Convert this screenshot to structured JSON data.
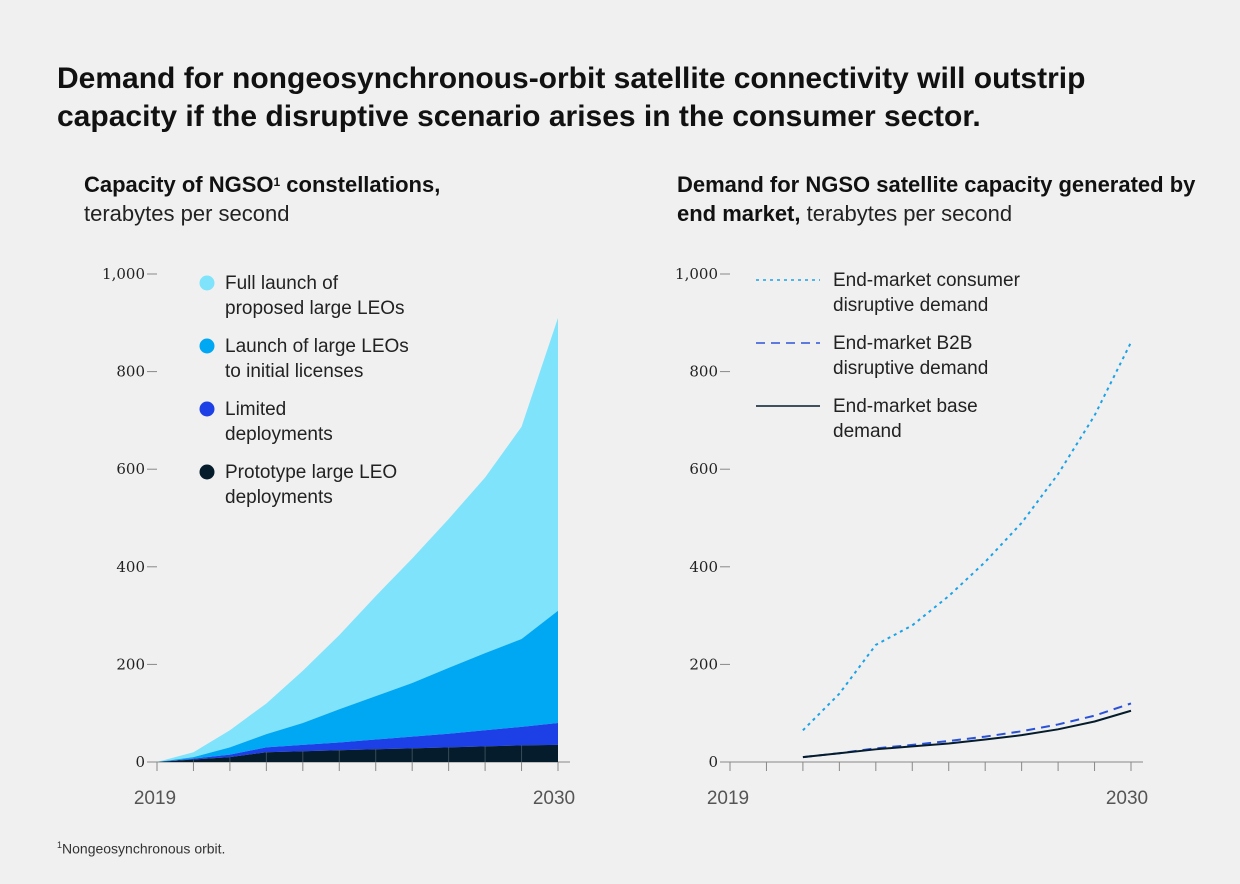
{
  "headline": "Demand for nongeosynchronous-orbit satellite connectivity will outstrip capacity if the disruptive scenario arises in the consumer sector.",
  "footnote": {
    "marker": "1",
    "text": "Nongeosynchronous orbit."
  },
  "colors": {
    "full_launch": "#7fe3fb",
    "initial_licenses": "#00a8f3",
    "limited": "#1d3fe6",
    "prototype": "#051c2c",
    "consumer_line": "#1aa3e8",
    "b2b_line": "#2a52d9",
    "base_line": "#051c2c",
    "axis": "#888888"
  },
  "chart_data": [
    {
      "type": "area",
      "stacked": true,
      "title_bold": "Capacity of NGSO",
      "title_sup": "1",
      "title_bold_tail": " constellations,",
      "title_unit": "terabytes per second",
      "x": [
        2019,
        2020,
        2021,
        2022,
        2023,
        2024,
        2025,
        2026,
        2027,
        2028,
        2029,
        2030
      ],
      "xtick_labels": [
        "2019",
        "2030"
      ],
      "yticks": [
        "1,000",
        "800",
        "600",
        "400",
        "200",
        "0"
      ],
      "ylim": [
        0,
        1000
      ],
      "series": [
        {
          "name": "Prototype large LEO deployments",
          "legend_lines": [
            "Prototype large LEO",
            "deployments"
          ],
          "color_key": "prototype",
          "values": [
            0,
            5,
            10,
            20,
            22,
            24,
            26,
            28,
            30,
            32,
            34,
            35
          ]
        },
        {
          "name": "Limited deployments",
          "legend_lines": [
            "Limited",
            "deployments"
          ],
          "color_key": "limited",
          "values": [
            0,
            2,
            5,
            10,
            13,
            16,
            20,
            24,
            28,
            33,
            38,
            45
          ]
        },
        {
          "name": "Launch of large LEOs to initial licenses",
          "legend_lines": [
            "Launch of large LEOs",
            "to initial licenses"
          ],
          "color_key": "initial_licenses",
          "values": [
            0,
            3,
            15,
            27,
            45,
            68,
            89,
            110,
            135,
            158,
            180,
            230
          ]
        },
        {
          "name": "Full launch of proposed large LEOs",
          "legend_lines": [
            "Full launch of",
            "proposed large LEOs"
          ],
          "color_key": "full_launch",
          "values": [
            0,
            10,
            35,
            63,
            107,
            152,
            205,
            255,
            305,
            360,
            435,
            600
          ]
        }
      ]
    },
    {
      "type": "line",
      "title_bold": "Demand for NGSO satellite capacity generated by end market,",
      "title_unit": "terabytes per second",
      "x": [
        2019,
        2020,
        2021,
        2022,
        2023,
        2024,
        2025,
        2026,
        2027,
        2028,
        2029,
        2030
      ],
      "xtick_labels": [
        "2019",
        "2030"
      ],
      "yticks": [
        "1,000",
        "800",
        "600",
        "400",
        "200",
        "0"
      ],
      "ylim": [
        0,
        1000
      ],
      "series": [
        {
          "name": "End-market consumer disruptive demand",
          "legend_lines": [
            "End-market consumer",
            "disruptive demand"
          ],
          "style": "dotted",
          "color_key": "consumer_line",
          "values": [
            null,
            null,
            65,
            140,
            240,
            280,
            340,
            410,
            490,
            590,
            710,
            860
          ]
        },
        {
          "name": "End-market B2B disruptive demand",
          "legend_lines": [
            "End-market B2B",
            "disruptive demand"
          ],
          "style": "dashed",
          "color_key": "b2b_line",
          "values": [
            null,
            null,
            10,
            18,
            28,
            35,
            43,
            52,
            63,
            77,
            95,
            120
          ]
        },
        {
          "name": "End-market base demand",
          "legend_lines": [
            "End-market base",
            "demand"
          ],
          "style": "solid",
          "color_key": "base_line",
          "values": [
            null,
            null,
            10,
            18,
            26,
            32,
            38,
            46,
            55,
            67,
            83,
            105
          ]
        }
      ]
    }
  ]
}
